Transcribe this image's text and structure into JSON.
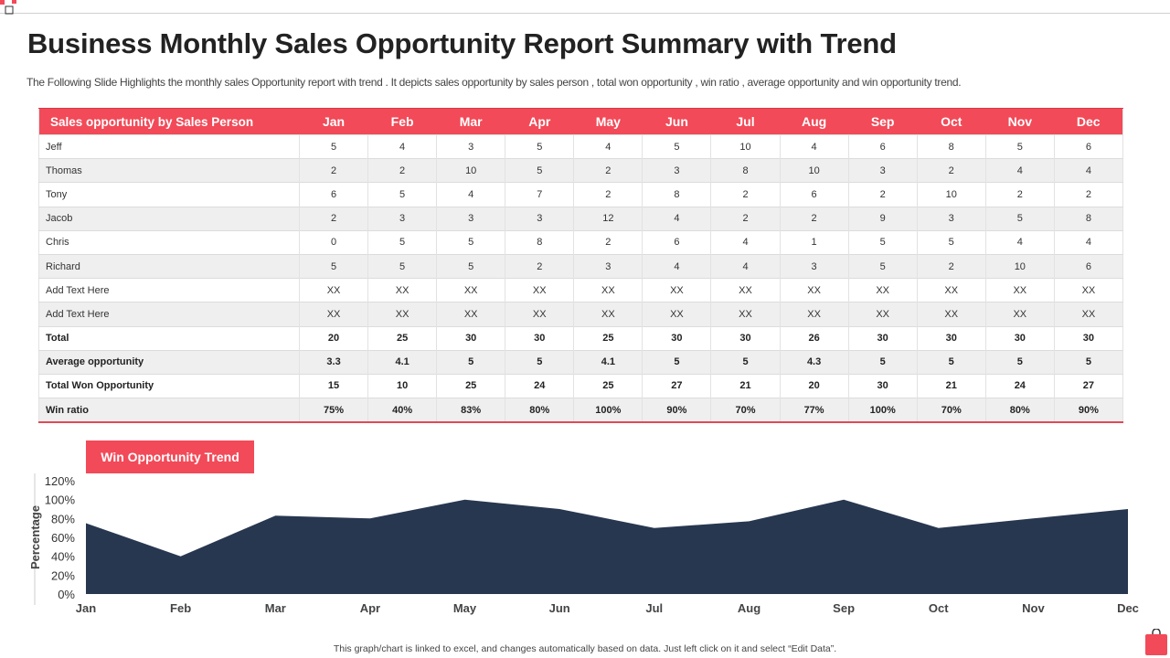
{
  "header": {
    "title": "Business Monthly Sales Opportunity Report Summary with Trend",
    "subtitle": "The Following Slide Highlights the monthly sales Opportunity report with trend .  It depicts sales opportunity by sales person , total won opportunity ,  win ratio , average opportunity and win opportunity trend."
  },
  "table": {
    "corner_header": "Sales opportunity  by Sales Person",
    "months": [
      "Jan",
      "Feb",
      "Mar",
      "Apr",
      "May",
      "Jun",
      "Jul",
      "Aug",
      "Sep",
      "Oct",
      "Nov",
      "Dec"
    ],
    "rows": [
      {
        "name": "Jeff",
        "bold": false,
        "values": [
          "5",
          "4",
          "3",
          "5",
          "4",
          "5",
          "10",
          "4",
          "6",
          "8",
          "5",
          "6"
        ]
      },
      {
        "name": "Thomas",
        "bold": false,
        "values": [
          "2",
          "2",
          "10",
          "5",
          "2",
          "3",
          "8",
          "10",
          "3",
          "2",
          "4",
          "4"
        ]
      },
      {
        "name": "Tony",
        "bold": false,
        "values": [
          "6",
          "5",
          "4",
          "7",
          "2",
          "8",
          "2",
          "6",
          "2",
          "10",
          "2",
          "2"
        ]
      },
      {
        "name": "Jacob",
        "bold": false,
        "values": [
          "2",
          "3",
          "3",
          "3",
          "12",
          "4",
          "2",
          "2",
          "9",
          "3",
          "5",
          "8"
        ]
      },
      {
        "name": "Chris",
        "bold": false,
        "values": [
          "0",
          "5",
          "5",
          "8",
          "2",
          "6",
          "4",
          "1",
          "5",
          "5",
          "4",
          "4"
        ]
      },
      {
        "name": "Richard",
        "bold": false,
        "values": [
          "5",
          "5",
          "5",
          "2",
          "3",
          "4",
          "4",
          "3",
          "5",
          "2",
          "10",
          "6"
        ]
      },
      {
        "name": "Add Text Here",
        "bold": false,
        "values": [
          "XX",
          "XX",
          "XX",
          "XX",
          "XX",
          "XX",
          "XX",
          "XX",
          "XX",
          "XX",
          "XX",
          "XX"
        ]
      },
      {
        "name": "Add Text Here",
        "bold": false,
        "values": [
          "XX",
          "XX",
          "XX",
          "XX",
          "XX",
          "XX",
          "XX",
          "XX",
          "XX",
          "XX",
          "XX",
          "XX"
        ]
      },
      {
        "name": "Total",
        "bold": true,
        "values": [
          "20",
          "25",
          "30",
          "30",
          "25",
          "30",
          "30",
          "26",
          "30",
          "30",
          "30",
          "30"
        ]
      },
      {
        "name": "Average opportunity",
        "bold": true,
        "values": [
          "3.3",
          "4.1",
          "5",
          "5",
          "4.1",
          "5",
          "5",
          "4.3",
          "5",
          "5",
          "5",
          "5"
        ]
      },
      {
        "name": "Total Won Opportunity",
        "bold": true,
        "values": [
          "15",
          "10",
          "25",
          "24",
          "25",
          "27",
          "21",
          "20",
          "30",
          "21",
          "24",
          "27"
        ]
      },
      {
        "name": "Win ratio",
        "bold": true,
        "values": [
          "75%",
          "40%",
          "83%",
          "80%",
          "100%",
          "90%",
          "70%",
          "77%",
          "100%",
          "70%",
          "80%",
          "90%"
        ]
      }
    ]
  },
  "trend_label": "Win Opportunity Trend",
  "chart_data": {
    "type": "area",
    "title": "Win Opportunity Trend",
    "xlabel": "",
    "ylabel": "Percentage",
    "categories": [
      "Jan",
      "Feb",
      "Mar",
      "Apr",
      "May",
      "Jun",
      "Jul",
      "Aug",
      "Sep",
      "Oct",
      "Nov",
      "Dec"
    ],
    "values": [
      75,
      40,
      83,
      80,
      100,
      90,
      70,
      77,
      100,
      70,
      80,
      90
    ],
    "ylim": [
      0,
      120
    ],
    "yticks": [
      0,
      20,
      40,
      60,
      80,
      100,
      120
    ],
    "ytick_labels": [
      "0%",
      "20%",
      "40%",
      "60%",
      "80%",
      "100%",
      "120%"
    ],
    "fill_color": "#283750",
    "grid": false,
    "legend": "none"
  },
  "footnote": "This graph/chart is linked to excel, and changes automatically based on data. Just left click on it and select “Edit Data”.",
  "colors": {
    "accent": "#f24a58",
    "area": "#283750"
  }
}
